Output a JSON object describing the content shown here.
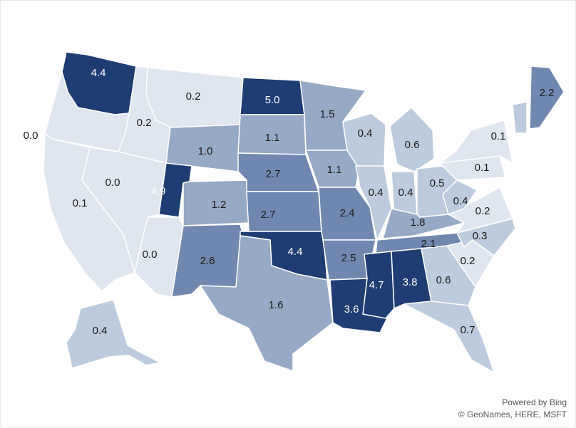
{
  "attribution": {
    "line1": "Powered by Bing",
    "line2": "© GeoNames, HERE, MSFT"
  },
  "colors": {
    "level0": "#dfe6ef",
    "level1": "#bccbdd",
    "level2": "#96a9c6",
    "level3": "#7088b0",
    "level4": "#1d3d73",
    "text_dark": "#1a1a1a",
    "text_light": "#ffffff",
    "border": "#ffffff"
  },
  "map_data": {
    "type": "choropleth",
    "region": "United States",
    "states": [
      {
        "name": "Washington",
        "value": "4.4"
      },
      {
        "name": "Oregon",
        "value": "0.0"
      },
      {
        "name": "California",
        "value": "0.1"
      },
      {
        "name": "Idaho",
        "value": "0.2"
      },
      {
        "name": "Nevada",
        "value": "0.0"
      },
      {
        "name": "Montana",
        "value": "0.2"
      },
      {
        "name": "Wyoming",
        "value": "1.0"
      },
      {
        "name": "Utah",
        "value": "4.9"
      },
      {
        "name": "Arizona",
        "value": "0.0"
      },
      {
        "name": "Colorado",
        "value": "1.2"
      },
      {
        "name": "New Mexico",
        "value": "2.6"
      },
      {
        "name": "North Dakota",
        "value": "5.0"
      },
      {
        "name": "South Dakota",
        "value": "1.1"
      },
      {
        "name": "Nebraska",
        "value": "2.7"
      },
      {
        "name": "Kansas",
        "value": "2.7"
      },
      {
        "name": "Oklahoma",
        "value": "4.4"
      },
      {
        "name": "Texas",
        "value": "1.6"
      },
      {
        "name": "Minnesota",
        "value": "1.5"
      },
      {
        "name": "Iowa",
        "value": "1.1"
      },
      {
        "name": "Missouri",
        "value": "2.4"
      },
      {
        "name": "Arkansas",
        "value": "2.5"
      },
      {
        "name": "Louisiana",
        "value": "3.6"
      },
      {
        "name": "Wisconsin",
        "value": "0.4"
      },
      {
        "name": "Illinois",
        "value": "0.4"
      },
      {
        "name": "Michigan",
        "value": "0.6"
      },
      {
        "name": "Indiana",
        "value": "0.4"
      },
      {
        "name": "Ohio",
        "value": "0.5"
      },
      {
        "name": "Kentucky",
        "value": "1.8"
      },
      {
        "name": "Tennessee",
        "value": "2.1"
      },
      {
        "name": "Mississippi",
        "value": "4.7"
      },
      {
        "name": "Alabama",
        "value": "3.8"
      },
      {
        "name": "Georgia",
        "value": "0.6"
      },
      {
        "name": "Florida",
        "value": "0.7"
      },
      {
        "name": "South Carolina",
        "value": "0.2"
      },
      {
        "name": "North Carolina",
        "value": "0.3"
      },
      {
        "name": "Virginia",
        "value": "0.2"
      },
      {
        "name": "West Virginia",
        "value": "0.4"
      },
      {
        "name": "Pennsylvania",
        "value": "0.1"
      },
      {
        "name": "New York",
        "value": "0.1"
      },
      {
        "name": "Vermont",
        "value": ""
      },
      {
        "name": "Maine",
        "value": "2.2"
      },
      {
        "name": "Alaska",
        "value": "0.4"
      }
    ]
  }
}
